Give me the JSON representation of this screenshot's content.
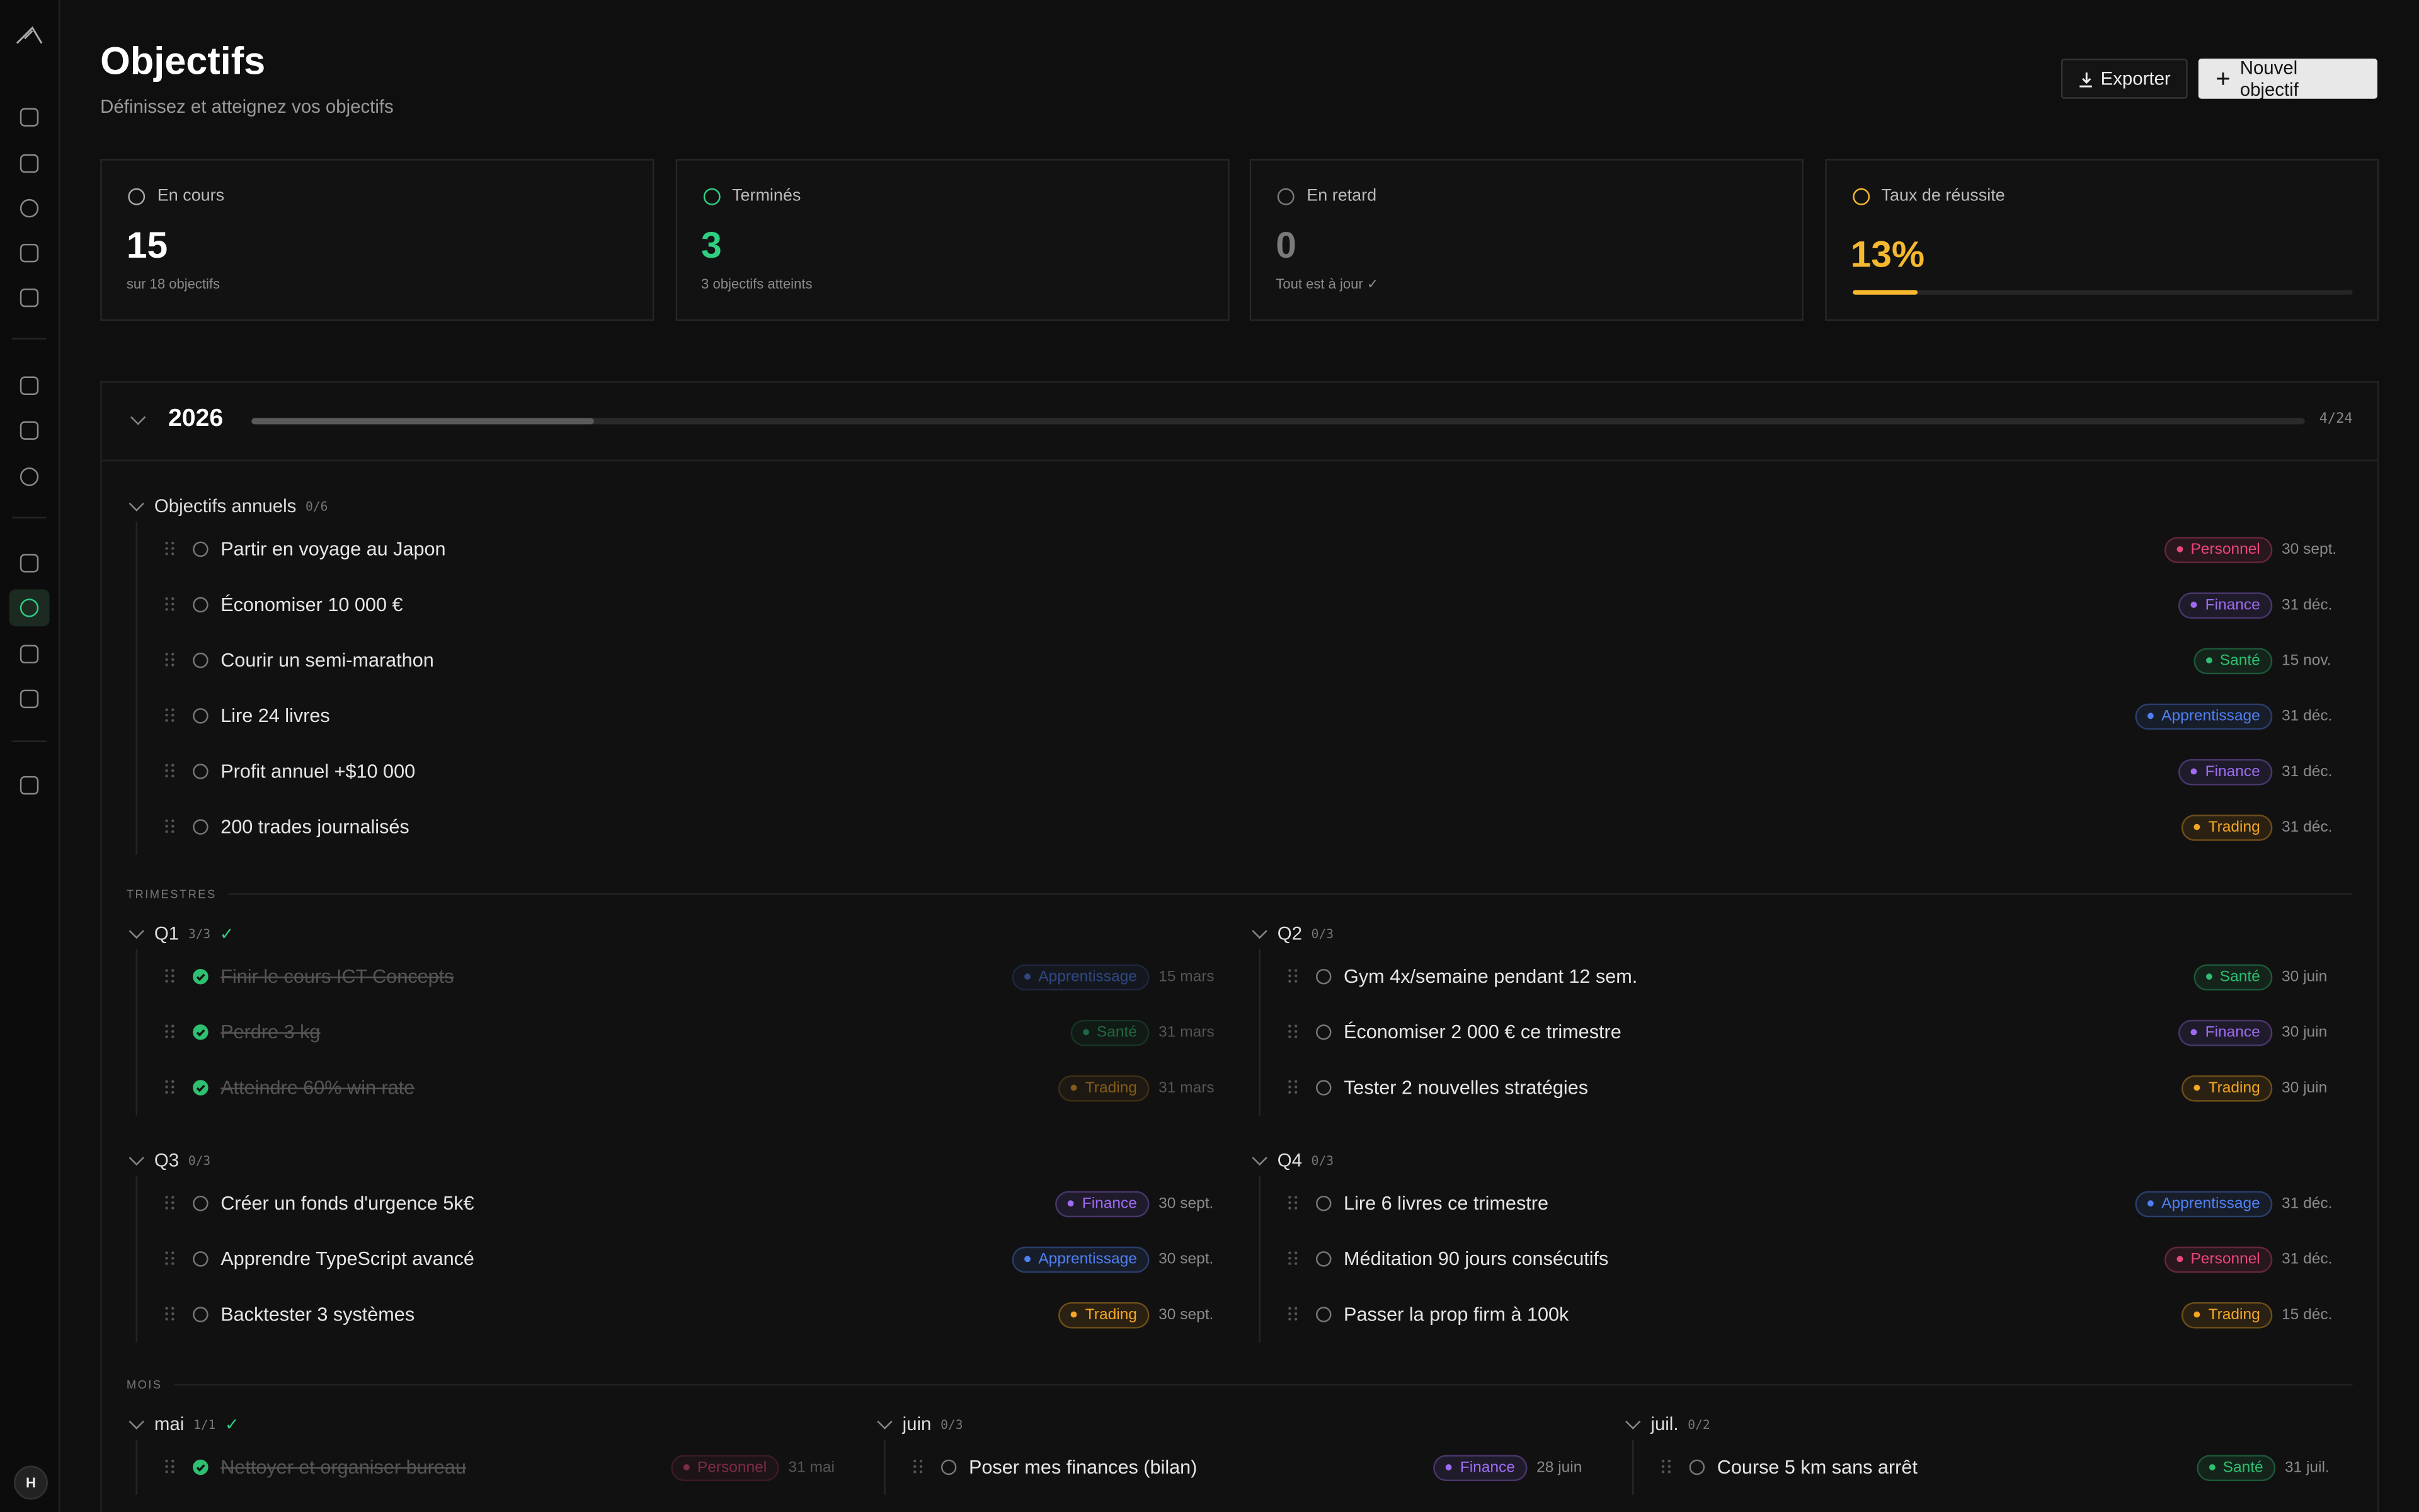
{
  "sidebar": {
    "avatar": "H"
  },
  "header": {
    "title": "Objectifs",
    "subtitle": "Définissez et atteignez vos objectifs",
    "buttons": [
      "Exporter",
      "Nouvel objectif"
    ]
  },
  "stats": [
    {
      "label": "En cours",
      "value": "15",
      "note": "sur 18 objectifs",
      "color": "#ffffff"
    },
    {
      "label": "Terminés",
      "value": "3",
      "note": "3 objectifs atteints",
      "color": "#2fcf82"
    },
    {
      "label": "En retard",
      "value": "0",
      "note": "Tout est à jour ✓",
      "color": "#7a7a7a"
    },
    {
      "label": "Taux de réussite",
      "value": {
        "value": 13,
        "label": "13%"
      },
      "color": "#f5b82e"
    }
  ],
  "tag_colors": {
    "Personnel": "#e8467f",
    "Finance": "#9d6cf2",
    "Santé": "#2fbf71",
    "Apprentissage": "#4f80f2",
    "Trading": "#f5a623"
  },
  "year": {
    "title": "2026",
    "progress": {
      "done": 4,
      "total": 24,
      "label": "4/24"
    }
  },
  "annual": {
    "title": "Objectifs annuels",
    "count": "0/6",
    "items": [
      {
        "text": "Partir en voyage au Japon",
        "tag": "Personnel",
        "date": "30 sept.",
        "done": false
      },
      {
        "text": "Économiser 10 000 €",
        "tag": "Finance",
        "date": "31 déc.",
        "done": false
      },
      {
        "text": "Courir un semi-marathon",
        "tag": "Santé",
        "date": "15 nov.",
        "done": false
      },
      {
        "text": "Lire 24 livres",
        "tag": "Apprentissage",
        "date": "31 déc.",
        "done": false
      },
      {
        "text": "Profit annuel +$10 000",
        "tag": "Finance",
        "date": "31 déc.",
        "done": false
      },
      {
        "text": "200 trades journalisés",
        "tag": "Trading",
        "date": "31 déc.",
        "done": false
      }
    ]
  },
  "quarters": {
    "label": "TRIMESTRES",
    "groups": [
      {
        "title": "Q1",
        "count": "3/3",
        "check": "✓",
        "items": [
          {
            "text": "Finir le cours ICT Concepts",
            "tag": "Apprentissage",
            "date": "15 mars",
            "done": true
          },
          {
            "text": "Perdre 3 kg",
            "tag": "Santé",
            "date": "31 mars",
            "done": true
          },
          {
            "text": "Atteindre 60% win rate",
            "tag": "Trading",
            "date": "31 mars",
            "done": true
          }
        ]
      },
      {
        "title": "Q2",
        "count": "0/3",
        "items": [
          {
            "text": "Gym 4x/semaine pendant 12 sem.",
            "tag": "Santé",
            "date": "30 juin",
            "done": false
          },
          {
            "text": "Économiser 2 000 € ce trimestre",
            "tag": "Finance",
            "date": "30 juin",
            "done": false
          },
          {
            "text": "Tester 2 nouvelles stratégies",
            "tag": "Trading",
            "date": "30 juin",
            "done": false
          }
        ]
      },
      {
        "title": "Q3",
        "count": "0/3",
        "items": [
          {
            "text": "Créer un fonds d'urgence 5k€",
            "tag": "Finance",
            "date": "30 sept.",
            "done": false
          },
          {
            "text": "Apprendre TypeScript avancé",
            "tag": "Apprentissage",
            "date": "30 sept.",
            "done": false
          },
          {
            "text": "Backtester 3 systèmes",
            "tag": "Trading",
            "date": "30 sept.",
            "done": false
          }
        ]
      },
      {
        "title": "Q4",
        "count": "0/3",
        "items": [
          {
            "text": "Lire 6 livres ce trimestre",
            "tag": "Apprentissage",
            "date": "31 déc.",
            "done": false
          },
          {
            "text": "Méditation 90 jours consécutifs",
            "tag": "Personnel",
            "date": "31 déc.",
            "done": false
          },
          {
            "text": "Passer la prop firm à 100k",
            "tag": "Trading",
            "date": "15 déc.",
            "done": false
          }
        ]
      }
    ]
  },
  "months": {
    "label": "MOIS",
    "groups": [
      {
        "title": "mai",
        "count": "1/1",
        "check": "✓",
        "items": [
          {
            "text": "Nettoyer et organiser bureau",
            "tag": "Personnel",
            "date": "31 mai",
            "done": true
          }
        ]
      },
      {
        "title": "juin",
        "count": "0/3",
        "items": [
          {
            "text": "Poser mes finances (bilan)",
            "tag": "Finance",
            "date": "28 juin",
            "done": false
          }
        ]
      },
      {
        "title": "juil.",
        "count": "0/2",
        "items": [
          {
            "text": "Course 5 km sans arrêt",
            "tag": "Santé",
            "date": "31 juil.",
            "done": false
          }
        ]
      }
    ]
  }
}
